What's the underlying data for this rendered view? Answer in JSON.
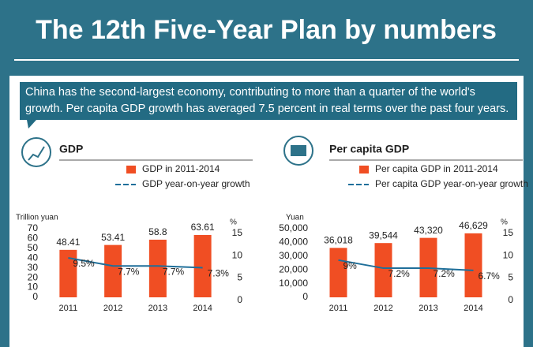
{
  "title": "The 12th Five-Year Plan by numbers",
  "caption": [
    "China has the second-largest economy, contributing to more than a quarter of the world's",
    "growth. Per capita GDP growth has averaged 7.5 percent in real terms over the past four years."
  ],
  "chart_data": [
    {
      "type": "combo",
      "title": "GDP",
      "ylabel": "Trillion yuan",
      "y2label": "%",
      "categories": [
        "2011",
        "2012",
        "2013",
        "2014"
      ],
      "series": [
        {
          "name": "GDP in 2011-2014",
          "type": "bar",
          "color": "#f04e23",
          "values": [
            48.41,
            53.41,
            58.8,
            63.61
          ]
        },
        {
          "name": "GDP year-on-year growth",
          "type": "line",
          "axis": "y2",
          "color": "#1f6f9a",
          "values": [
            9.5,
            7.7,
            7.7,
            7.3
          ],
          "value_labels": [
            "9.5%",
            "7.7%",
            "7.7%",
            "7.3%"
          ]
        }
      ],
      "ylim": [
        0,
        70
      ],
      "yticks": [
        0,
        10,
        20,
        30,
        40,
        50,
        60,
        70
      ],
      "y2lim": [
        0,
        16
      ],
      "y2ticks": [
        0,
        5,
        10,
        15
      ]
    },
    {
      "type": "combo",
      "title": "Per capita GDP",
      "ylabel": "Yuan",
      "y2label": "%",
      "categories": [
        "2011",
        "2012",
        "2013",
        "2014"
      ],
      "series": [
        {
          "name": "Per capita GDP in 2011-2014",
          "type": "bar",
          "color": "#f04e23",
          "values": [
            36018,
            39544,
            43320,
            46629
          ],
          "value_labels": [
            "36,018",
            "39,544",
            "43,320",
            "46,629"
          ]
        },
        {
          "name": "Per capita GDP year-on-year growth",
          "type": "line",
          "axis": "y2",
          "color": "#1f6f9a",
          "values": [
            9,
            7.2,
            7.2,
            6.7
          ],
          "value_labels": [
            "9%",
            "7.2%",
            "7.2%",
            "6.7%"
          ]
        }
      ],
      "ylim": [
        0,
        50000
      ],
      "yticks": [
        0,
        {
          "value": 10000,
          "label": "10,000"
        },
        {
          "value": 20000,
          "label": "20,000"
        },
        {
          "value": 30000,
          "label": "30,000"
        },
        {
          "value": 40000,
          "label": "40,000"
        },
        {
          "value": 50000,
          "label": "50,000"
        }
      ],
      "y2lim": [
        0,
        16
      ],
      "y2ticks": [
        0,
        5,
        10,
        15
      ]
    }
  ]
}
